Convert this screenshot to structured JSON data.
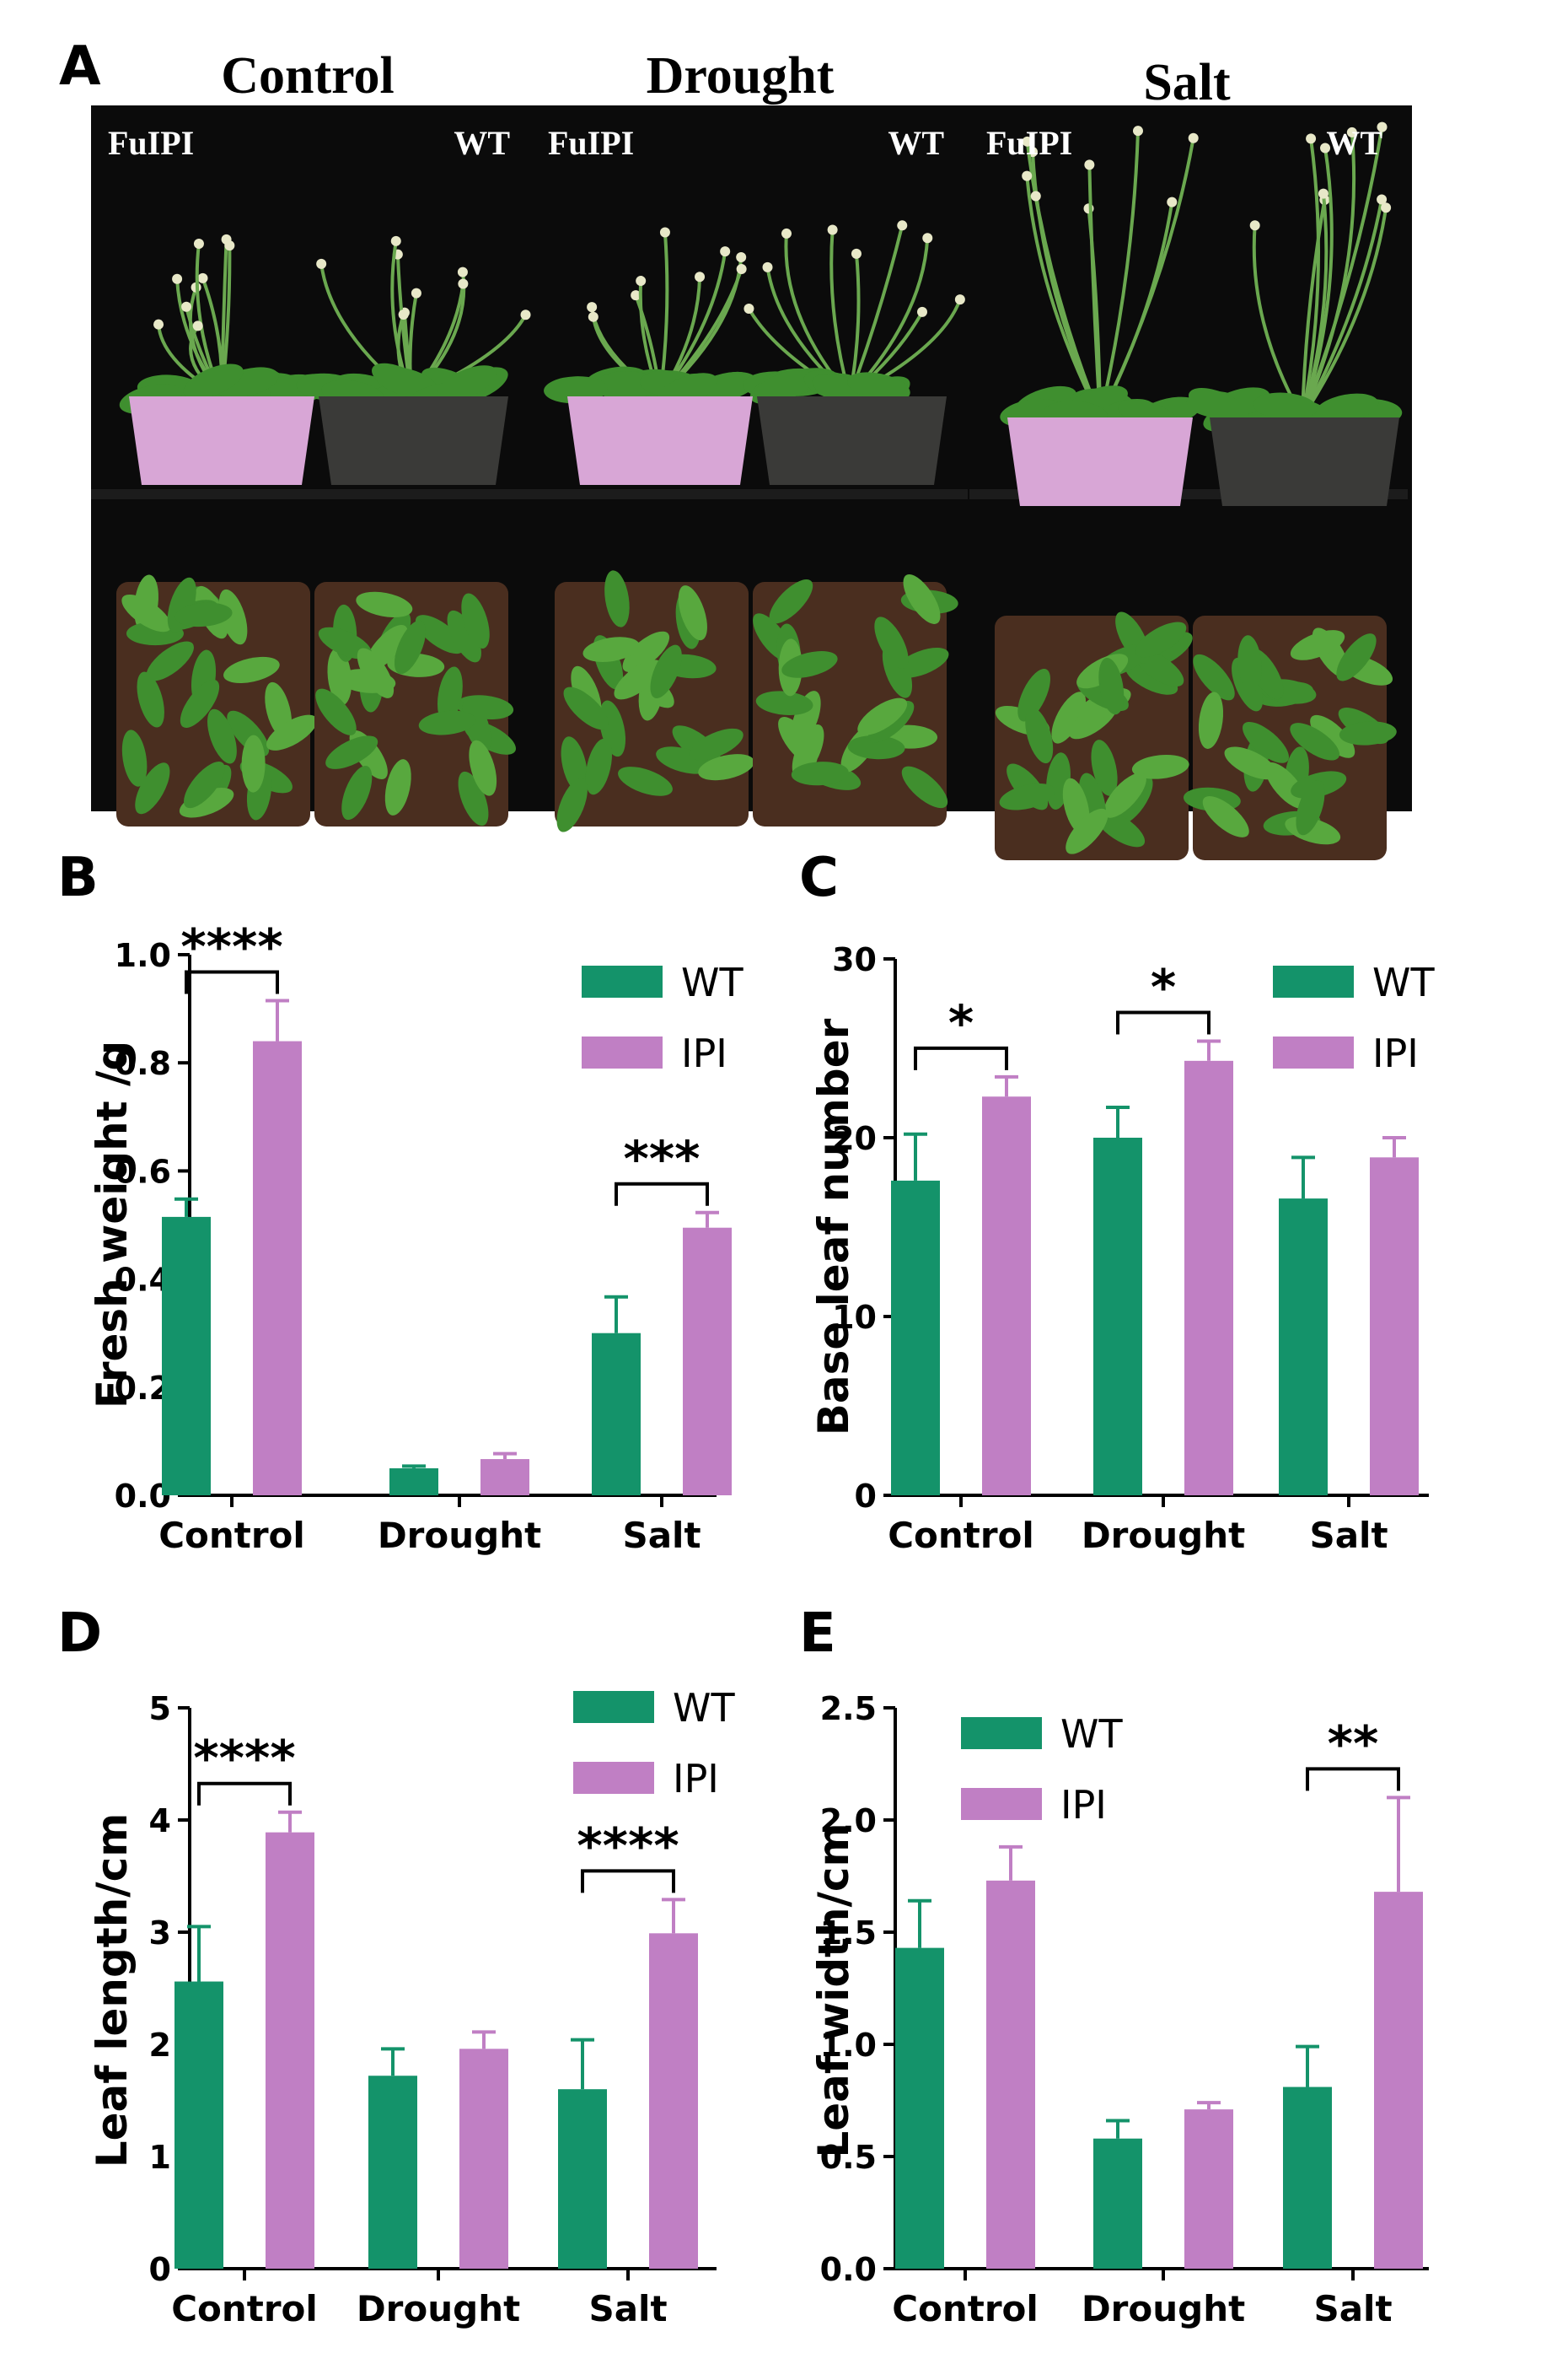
{
  "figure": {
    "panel_a": {
      "letter": "A",
      "conditions": [
        "Control",
        "Drought",
        "Salt"
      ],
      "photo_labels": [
        {
          "left": "FuIPI",
          "right": "WT"
        },
        {
          "left": "FuIPI",
          "right": "WT"
        },
        {
          "left": "FuIPI",
          "right": "WT"
        }
      ],
      "colors": {
        "background": "#0c0c0c",
        "plant": "#3f8f2f",
        "soil": "#4a2e1f",
        "pink_pot": "#d8a6d6",
        "dark_pot": "#3a3a38"
      }
    },
    "colors": {
      "WT": "#14936a",
      "IPI": "#c07fc4"
    }
  },
  "chart_data": [
    {
      "panel": "B",
      "type": "bar",
      "categories": [
        "Control",
        "Drought",
        "Salt"
      ],
      "series": [
        {
          "name": "WT",
          "values": [
            0.515,
            0.05,
            0.3
          ],
          "errors": [
            0.033,
            0.004,
            0.067
          ]
        },
        {
          "name": "IPI",
          "values": [
            0.84,
            0.067,
            0.495
          ],
          "errors": [
            0.075,
            0.01,
            0.028
          ]
        }
      ],
      "title": "",
      "xlabel": "",
      "ylabel": "Fresh weight /g",
      "ylim": [
        0,
        1.0
      ],
      "yticks": [
        "0.0",
        "0.2",
        "0.4",
        "0.6",
        "0.8",
        "1.0"
      ],
      "legend": "top-right",
      "annotations": [
        {
          "category": "Control",
          "text": "****"
        },
        {
          "category": "Salt",
          "text": "***"
        }
      ]
    },
    {
      "panel": "C",
      "type": "bar",
      "categories": [
        "Control",
        "Drought",
        "Salt"
      ],
      "series": [
        {
          "name": "WT",
          "values": [
            17.6,
            20.0,
            16.6
          ],
          "errors": [
            2.6,
            1.7,
            2.3
          ]
        },
        {
          "name": "IPI",
          "values": [
            22.3,
            24.3,
            18.9
          ],
          "errors": [
            1.1,
            1.1,
            1.1
          ]
        }
      ],
      "title": "",
      "xlabel": "",
      "ylabel": "Base leaf number",
      "ylim": [
        0,
        30
      ],
      "yticks": [
        "0",
        "10",
        "20",
        "30"
      ],
      "legend": "top-right",
      "annotations": [
        {
          "category": "Control",
          "text": "*"
        },
        {
          "category": "Drought",
          "text": "*"
        }
      ]
    },
    {
      "panel": "D",
      "type": "bar",
      "categories": [
        "Control",
        "Drought",
        "Salt"
      ],
      "series": [
        {
          "name": "WT",
          "values": [
            2.56,
            1.72,
            1.6
          ],
          "errors": [
            0.49,
            0.24,
            0.44
          ]
        },
        {
          "name": "IPI",
          "values": [
            3.89,
            1.96,
            2.99
          ],
          "errors": [
            0.18,
            0.15,
            0.3
          ]
        }
      ],
      "title": "",
      "xlabel": "",
      "ylabel": "Leaf length/cm",
      "ylim": [
        0,
        5
      ],
      "yticks": [
        "0",
        "1",
        "2",
        "3",
        "4",
        "5"
      ],
      "legend": "top-right",
      "annotations": [
        {
          "category": "Control",
          "text": "****"
        },
        {
          "category": "Salt",
          "text": "****"
        }
      ]
    },
    {
      "panel": "E",
      "type": "bar",
      "categories": [
        "Control",
        "Drought",
        "Salt"
      ],
      "series": [
        {
          "name": "WT",
          "values": [
            1.43,
            0.58,
            0.81
          ],
          "errors": [
            0.21,
            0.08,
            0.18
          ]
        },
        {
          "name": "IPI",
          "values": [
            1.73,
            0.71,
            1.68
          ],
          "errors": [
            0.15,
            0.03,
            0.42
          ]
        }
      ],
      "title": "",
      "xlabel": "",
      "ylabel": "Leaf width/cm",
      "ylim": [
        0,
        2.5
      ],
      "yticks": [
        "0.0",
        "0.5",
        "1.0",
        "1.5",
        "2.0",
        "2.5"
      ],
      "legend": "top-left",
      "annotations": [
        {
          "category": "Salt",
          "text": "**"
        }
      ]
    }
  ]
}
